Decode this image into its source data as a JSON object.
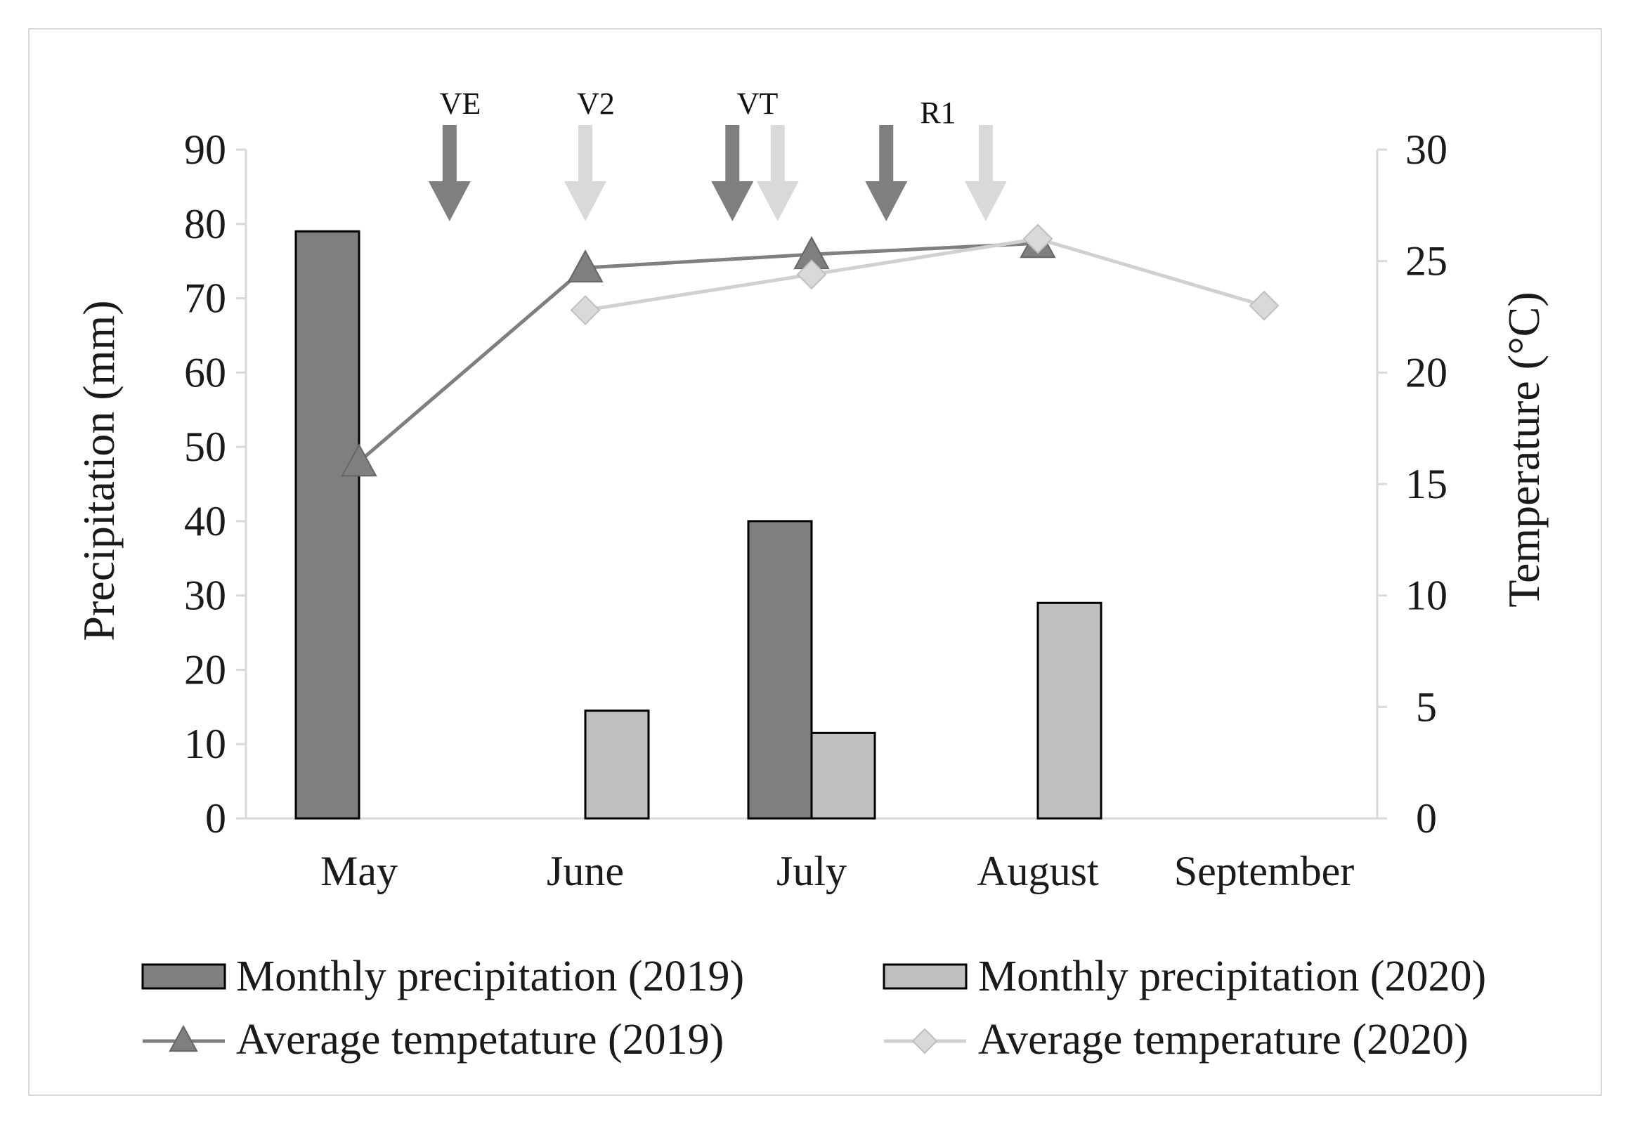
{
  "chart_data": {
    "type": "bar",
    "categories": [
      "May",
      "June",
      "July",
      "August",
      "September"
    ],
    "left_axis": {
      "label": "Precipitation (mm)",
      "min": 0,
      "max": 90,
      "step": 10
    },
    "right_axis": {
      "label": "Temperature (°C)",
      "min": 0,
      "max": 30,
      "step": 5
    },
    "bar_series": [
      {
        "name": "Monthly precipitation (2019)",
        "color": "#7f7f7f",
        "values": [
          79,
          null,
          40,
          null,
          null
        ]
      },
      {
        "name": "Monthly precipitation (2020)",
        "color": "#bfbfbf",
        "values": [
          null,
          14.5,
          11.5,
          29,
          null
        ]
      }
    ],
    "line_series": [
      {
        "name": "Average tempetature (2019)",
        "color": "#7f7f7f",
        "marker": "triangle",
        "values": [
          16,
          24.7,
          25.3,
          25.8,
          null
        ]
      },
      {
        "name": "Average temperature (2020)",
        "color": "#d0d0d0",
        "marker": "diamond",
        "values": [
          null,
          22.8,
          24.4,
          26,
          23
        ]
      }
    ],
    "stage_labels": [
      "VE",
      "V2",
      "VT",
      "R1"
    ],
    "stage_arrows": [
      {
        "year": "2019",
        "color": "#7f7f7f",
        "position": 0.4
      },
      {
        "year": "2020",
        "color": "#d9d9d9",
        "position": 1.0
      },
      {
        "year": "2019",
        "color": "#7f7f7f",
        "position": 1.65
      },
      {
        "year": "2020",
        "color": "#d9d9d9",
        "position": 1.85
      },
      {
        "year": "2019",
        "color": "#7f7f7f",
        "position": 2.33
      },
      {
        "year": "2020",
        "color": "#d9d9d9",
        "position": 2.77
      }
    ]
  }
}
